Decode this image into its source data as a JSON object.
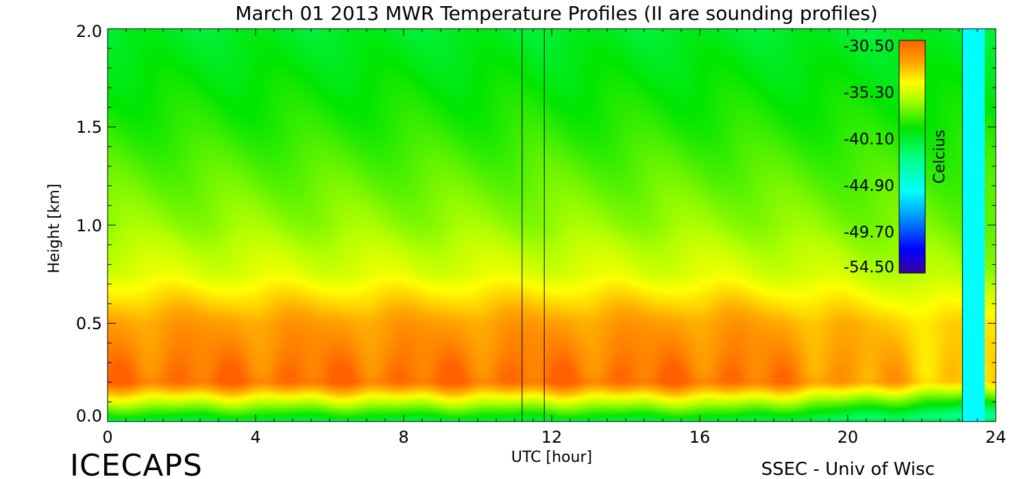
{
  "chart_data": {
    "type": "heatmap",
    "title": "March 01 2013 MWR Temperature Profiles (II are sounding profiles)",
    "xlabel": "UTC [hour]",
    "ylabel": "Height [km]",
    "xlim": [
      0,
      24
    ],
    "ylim": [
      0,
      2.0
    ],
    "x_ticks": [
      "0",
      "4",
      "8",
      "12",
      "16",
      "20",
      "24"
    ],
    "y_ticks": [
      "0.0",
      "0.5",
      "1.0",
      "1.5",
      "2.0"
    ],
    "colorbar": {
      "label": "Celcius",
      "ticks": [
        "-30.50",
        "-35.30",
        "-40.10",
        "-44.90",
        "-49.70",
        "-54.50"
      ],
      "range": [
        -54.5,
        -30.5
      ]
    },
    "sounding_lines_hours": [
      11.2,
      11.8,
      23.1
    ],
    "missing_band_hours": [
      23.1,
      23.7
    ],
    "profile_samples": [
      {
        "height_km": 0.02,
        "temp_c": -40.0
      },
      {
        "height_km": 0.2,
        "temp_c": -31.0
      },
      {
        "height_km": 0.5,
        "temp_c": -32.5
      },
      {
        "height_km": 0.75,
        "temp_c": -35.5
      },
      {
        "height_km": 1.0,
        "temp_c": -37.0
      },
      {
        "height_km": 1.5,
        "temp_c": -39.0
      },
      {
        "height_km": 2.0,
        "temp_c": -40.5
      }
    ]
  },
  "brand": "ICECAPS",
  "credit": "SSEC - Univ of Wisc"
}
